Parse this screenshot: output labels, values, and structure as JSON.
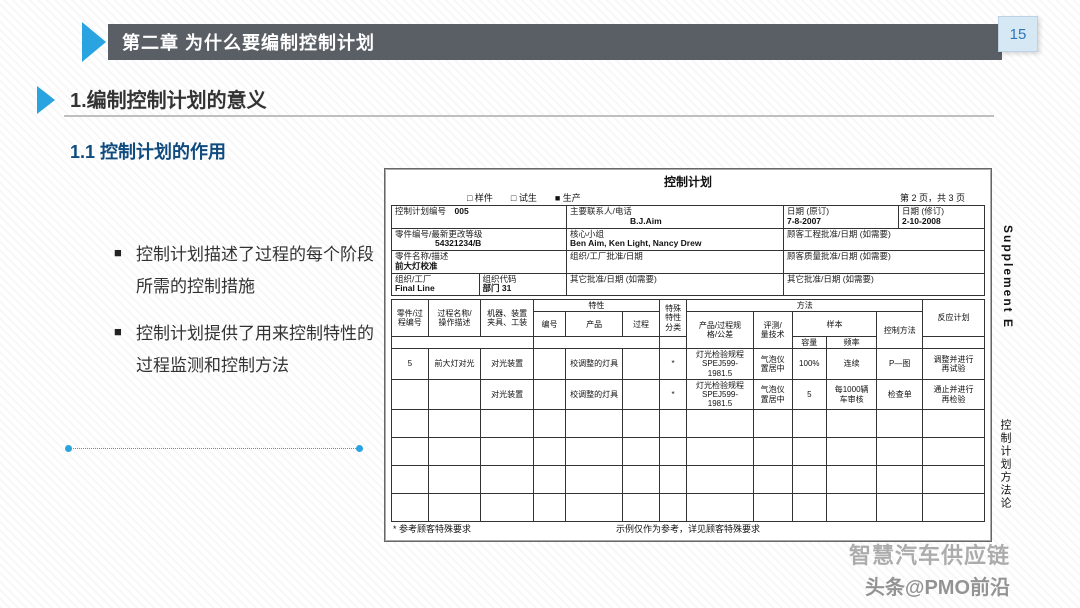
{
  "page": {
    "number": "15",
    "chapter": "第二章 为什么要编制控制计划",
    "section": "1.编制控制计划的意义",
    "subsection": "1.1 控制计划的作用"
  },
  "bullets": [
    "控制计划描述了过程的每个阶段所需的控制措施",
    "控制计划提供了用来控制特性的过程监测和控制方法"
  ],
  "form": {
    "title": "控制计划",
    "checks": "□ 样件　　□ 试生　　■ 生产",
    "pagenote": "第 2 页，共 3 页",
    "side_en": "Supplement E",
    "side_cn": "控制计划方法论",
    "meta": {
      "plan_no_lbl": "控制计划编号",
      "plan_no": "005",
      "contact_lbl": "主要联系人/电话",
      "contact": "B.J.Aim",
      "date1_lbl": "日期 (原订)",
      "date1": "7-8-2007",
      "date2_lbl": "日期 (修订)",
      "date2": "2-10-2008",
      "part_lbl": "零件编号/最新更改等级",
      "part": "54321234/B",
      "core_lbl": "核心小组",
      "core": "Ben Aim, Ken Light, Nancy Drew",
      "eng_appr_lbl": "顾客工程批准/日期 (如需要)",
      "desc_lbl": "零件名称/描述",
      "desc": "前大灯校准",
      "org_lbl": "组织/工厂批准/日期",
      "qa_appr_lbl": "顾客质量批准/日期 (如需要)",
      "plant_lbl": "组织/工厂",
      "plant": "Final Line",
      "code_lbl": "组织代码",
      "code": "部门 31",
      "other1_lbl": "其它批准/日期 (如需要)",
      "other2_lbl": "其它批准/日期 (如需要)"
    },
    "head": {
      "c1": "零件/过\n程编号",
      "c2": "过程名称/\n操作描述",
      "c3": "机器、装置\n夹具、工装",
      "grp_char": "特性",
      "c4": "编号",
      "c5": "产品",
      "c6": "过程",
      "c7": "特殊\n特性\n分类",
      "grp_meth": "方法",
      "c8": "产品/过程规\n格/公差",
      "c9": "评测/\n量技术",
      "grp_samp": "样本",
      "c10": "容量",
      "c11": "频率",
      "c12": "控制方法",
      "c13": "反应计划"
    },
    "rows": [
      {
        "c1": "5",
        "c2": "前大灯对光",
        "c3": "对光装置",
        "c4": "",
        "c5": "校调整的灯具",
        "c6": "",
        "c7": "*",
        "c8": "灯光检验规程\nSPEJ599-\n1981.5",
        "c9": "气泡仪\n置居中",
        "c10": "100%",
        "c11": "连续",
        "c12": "P—图",
        "c13": "调整并进行\n再试验"
      },
      {
        "c1": "",
        "c2": "",
        "c3": "对光装置",
        "c4": "",
        "c5": "校调整的灯具",
        "c6": "",
        "c7": "*",
        "c8": "灯光检验规程\nSPEJ599-\n1981.5",
        "c9": "气泡仪\n置居中",
        "c10": "5",
        "c11": "每1000辆\n车审核",
        "c12": "检查单",
        "c13": "通止并进行\n再检验"
      }
    ],
    "foot_l": "* 参考顾客特殊要求",
    "foot_c": "示例仅作为参考，详见顾客特殊要求"
  },
  "watermark": {
    "a": "智慧汽车供应链",
    "b": "头条@PMO前沿"
  }
}
